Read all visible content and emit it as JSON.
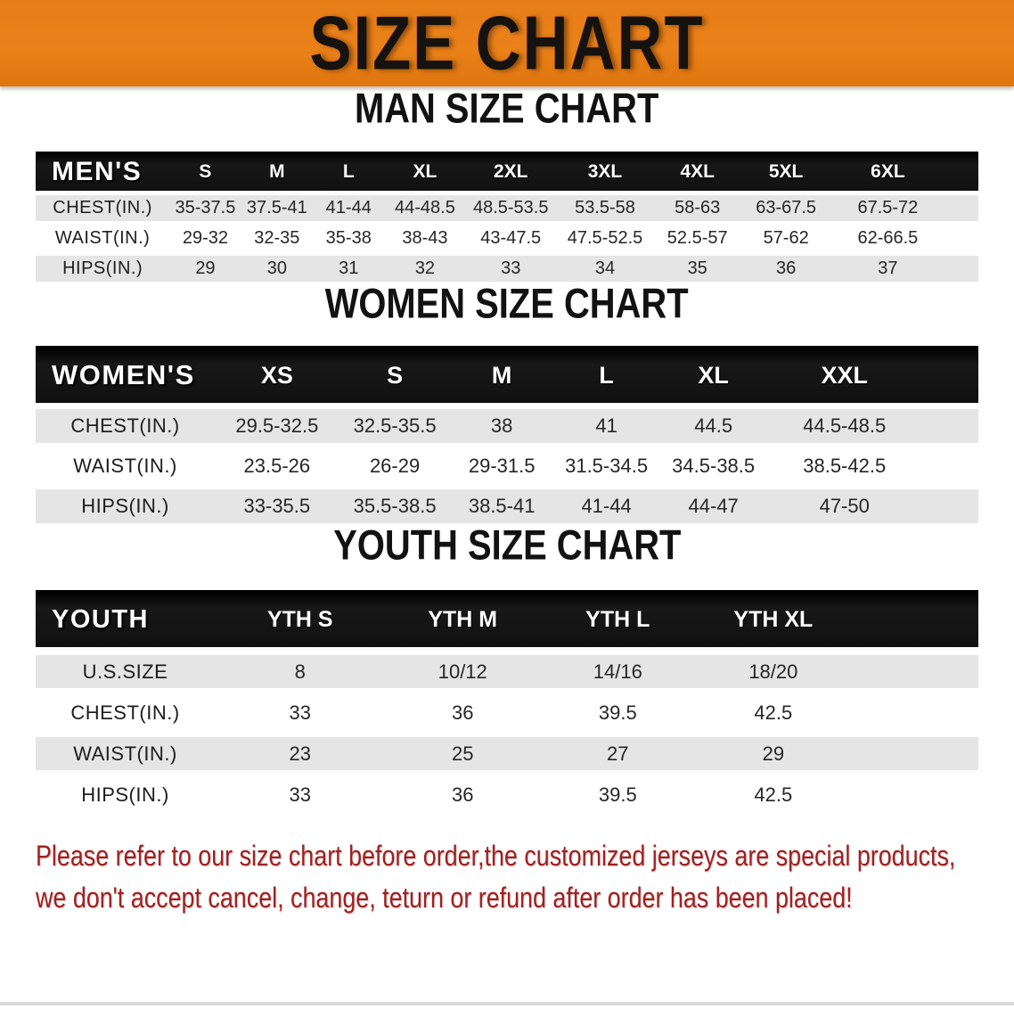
{
  "banner": {
    "title": "SIZE CHART"
  },
  "colors": {
    "banner_orange": "#e87d17",
    "header_black": "#181818",
    "row_gray": "#e5e5e5",
    "disclaimer_red": "#a02121"
  },
  "men": {
    "heading": "MAN SIZE CHART",
    "corner": "MEN'S",
    "sizes": [
      "S",
      "M",
      "L",
      "XL",
      "2XL",
      "3XL",
      "4XL",
      "5XL",
      "6XL"
    ],
    "rows": [
      {
        "label": "CHEST(IN.)",
        "values": [
          "35-37.5",
          "37.5-41",
          "41-44",
          "44-48.5",
          "48.5-53.5",
          "53.5-58",
          "58-63",
          "63-67.5",
          "67.5-72"
        ]
      },
      {
        "label": "WAIST(IN.)",
        "values": [
          "29-32",
          "32-35",
          "35-38",
          "38-43",
          "43-47.5",
          "47.5-52.5",
          "52.5-57",
          "57-62",
          "62-66.5"
        ]
      },
      {
        "label": "HIPS(IN.)",
        "values": [
          "29",
          "30",
          "31",
          "32",
          "33",
          "34",
          "35",
          "36",
          "37"
        ]
      }
    ]
  },
  "women": {
    "heading": "WOMEN SIZE CHART",
    "corner": "WOMEN'S",
    "sizes": [
      "XS",
      "S",
      "M",
      "L",
      "XL",
      "XXL"
    ],
    "rows": [
      {
        "label": "CHEST(IN.)",
        "values": [
          "29.5-32.5",
          "32.5-35.5",
          "38",
          "41",
          "44.5",
          "44.5-48.5"
        ]
      },
      {
        "label": "WAIST(IN.)",
        "values": [
          "23.5-26",
          "26-29",
          "29-31.5",
          "31.5-34.5",
          "34.5-38.5",
          "38.5-42.5"
        ]
      },
      {
        "label": "HIPS(IN.)",
        "values": [
          "33-35.5",
          "35.5-38.5",
          "38.5-41",
          "41-44",
          "44-47",
          "47-50"
        ]
      }
    ]
  },
  "youth": {
    "heading": "YOUTH SIZE CHART",
    "corner": "YOUTH",
    "sizes": [
      "YTH S",
      "YTH M",
      "YTH L",
      "YTH XL"
    ],
    "rows": [
      {
        "label": "U.S.SIZE",
        "values": [
          "8",
          "10/12",
          "14/16",
          "18/20"
        ]
      },
      {
        "label": "CHEST(IN.)",
        "values": [
          "33",
          "36",
          "39.5",
          "42.5"
        ]
      },
      {
        "label": "WAIST(IN.)",
        "values": [
          "23",
          "25",
          "27",
          "29"
        ]
      },
      {
        "label": "HIPS(IN.)",
        "values": [
          "33",
          "36",
          "39.5",
          "42.5"
        ]
      }
    ]
  },
  "disclaimer": {
    "line1": "Please refer to our size chart before order,the customized jerseys are special products,",
    "line2": "we don't accept cancel, change, teturn or refund after order has been placed!"
  }
}
